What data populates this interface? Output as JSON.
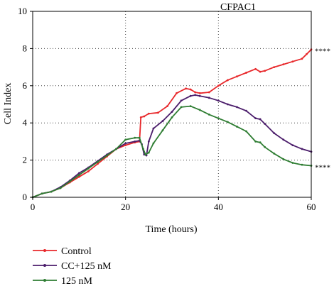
{
  "chart_data": {
    "type": "line",
    "title": "CFPAC1",
    "xlabel": "Time (hours)",
    "ylabel": "Cell Index",
    "xlim": [
      0,
      60
    ],
    "ylim": [
      0,
      10
    ],
    "xticks": [
      "0",
      "20",
      "40",
      "60"
    ],
    "yticks": [
      "0",
      "2",
      "4",
      "6",
      "8",
      "10"
    ],
    "grid": "dotted",
    "legend_position": "bottom-left",
    "series": [
      {
        "name": "Control",
        "color": "#e8282b",
        "annotation": "****",
        "points": [
          [
            0,
            0
          ],
          [
            2,
            0.2
          ],
          [
            4,
            0.3
          ],
          [
            6,
            0.5
          ],
          [
            8,
            0.8
          ],
          [
            10,
            1.1
          ],
          [
            12,
            1.4
          ],
          [
            14,
            1.8
          ],
          [
            16,
            2.2
          ],
          [
            18,
            2.6
          ],
          [
            20,
            2.8
          ],
          [
            22,
            2.95
          ],
          [
            23,
            3.0
          ],
          [
            23.3,
            4.3
          ],
          [
            24,
            4.35
          ],
          [
            25,
            4.5
          ],
          [
            27,
            4.55
          ],
          [
            29,
            4.9
          ],
          [
            31,
            5.6
          ],
          [
            33,
            5.85
          ],
          [
            34,
            5.8
          ],
          [
            35,
            5.65
          ],
          [
            36,
            5.6
          ],
          [
            38,
            5.65
          ],
          [
            40,
            6.0
          ],
          [
            42,
            6.3
          ],
          [
            44,
            6.5
          ],
          [
            46,
            6.7
          ],
          [
            48,
            6.9
          ],
          [
            49,
            6.75
          ],
          [
            50,
            6.8
          ],
          [
            52,
            7.0
          ],
          [
            54,
            7.15
          ],
          [
            56,
            7.3
          ],
          [
            58,
            7.45
          ],
          [
            59,
            7.7
          ],
          [
            60,
            7.95
          ]
        ]
      },
      {
        "name": "CC+125 nM",
        "color": "#4b1d6b",
        "annotation": "",
        "points": [
          [
            0,
            0
          ],
          [
            2,
            0.2
          ],
          [
            4,
            0.3
          ],
          [
            6,
            0.55
          ],
          [
            8,
            0.9
          ],
          [
            10,
            1.3
          ],
          [
            12,
            1.6
          ],
          [
            14,
            1.95
          ],
          [
            16,
            2.3
          ],
          [
            18,
            2.6
          ],
          [
            20,
            2.9
          ],
          [
            22,
            3.0
          ],
          [
            23,
            3.05
          ],
          [
            23.5,
            2.85
          ],
          [
            24,
            2.3
          ],
          [
            24.5,
            2.25
          ],
          [
            25,
            3.0
          ],
          [
            26,
            3.7
          ],
          [
            28,
            4.1
          ],
          [
            30,
            4.6
          ],
          [
            32,
            5.2
          ],
          [
            34,
            5.45
          ],
          [
            35,
            5.5
          ],
          [
            36,
            5.45
          ],
          [
            38,
            5.35
          ],
          [
            40,
            5.2
          ],
          [
            42,
            5.0
          ],
          [
            44,
            4.85
          ],
          [
            46,
            4.65
          ],
          [
            48,
            4.25
          ],
          [
            49,
            4.2
          ],
          [
            50,
            3.95
          ],
          [
            52,
            3.45
          ],
          [
            54,
            3.1
          ],
          [
            56,
            2.8
          ],
          [
            58,
            2.6
          ],
          [
            60,
            2.45
          ]
        ]
      },
      {
        "name": "125 nM",
        "color": "#2e7d32",
        "annotation": "****",
        "points": [
          [
            0,
            0
          ],
          [
            2,
            0.2
          ],
          [
            4,
            0.3
          ],
          [
            6,
            0.5
          ],
          [
            8,
            0.85
          ],
          [
            10,
            1.2
          ],
          [
            12,
            1.55
          ],
          [
            14,
            1.9
          ],
          [
            16,
            2.25
          ],
          [
            18,
            2.6
          ],
          [
            20,
            3.1
          ],
          [
            22,
            3.2
          ],
          [
            23,
            3.2
          ],
          [
            23.8,
            2.6
          ],
          [
            24.3,
            2.3
          ],
          [
            25,
            2.4
          ],
          [
            26,
            2.9
          ],
          [
            28,
            3.6
          ],
          [
            30,
            4.3
          ],
          [
            32,
            4.85
          ],
          [
            34,
            4.9
          ],
          [
            36,
            4.7
          ],
          [
            38,
            4.45
          ],
          [
            40,
            4.25
          ],
          [
            42,
            4.05
          ],
          [
            44,
            3.8
          ],
          [
            46,
            3.55
          ],
          [
            48,
            3.0
          ],
          [
            49,
            2.95
          ],
          [
            50,
            2.7
          ],
          [
            52,
            2.35
          ],
          [
            54,
            2.05
          ],
          [
            56,
            1.85
          ],
          [
            58,
            1.75
          ],
          [
            60,
            1.7
          ]
        ]
      }
    ]
  }
}
